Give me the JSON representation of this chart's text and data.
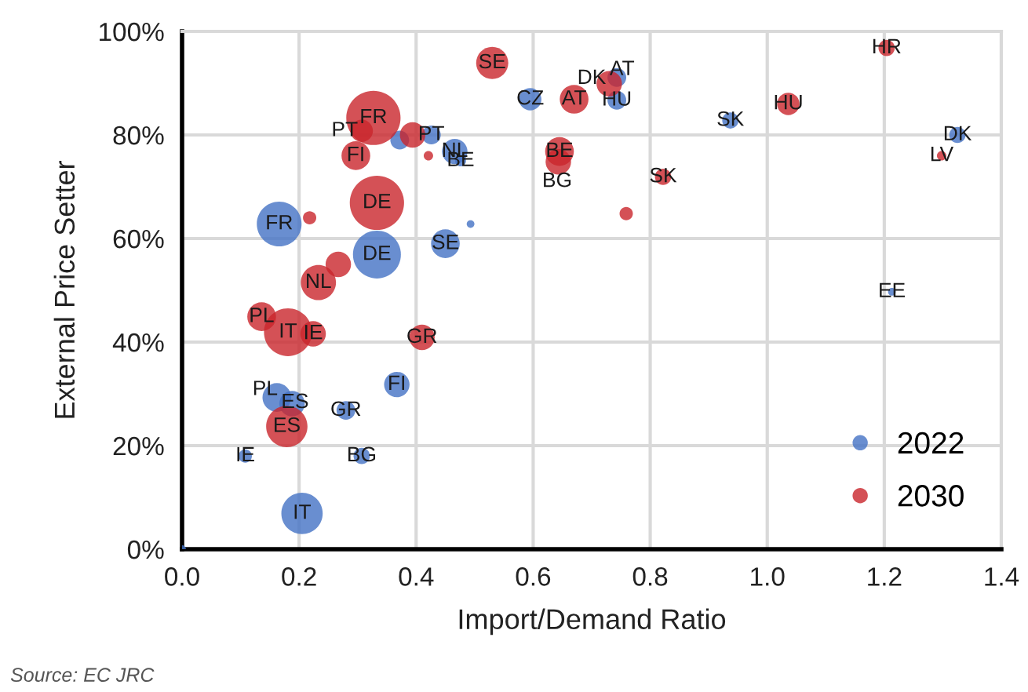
{
  "chart_data": {
    "type": "bubble",
    "xlabel": "Import/Demand Ratio",
    "ylabel": "External Price Setter",
    "xlim": [
      0,
      1.4
    ],
    "ylim": [
      0,
      100
    ],
    "xticks": [
      {
        "value": 0,
        "label": "0.0"
      },
      {
        "value": 0.2,
        "label": "0.2"
      },
      {
        "value": 0.4,
        "label": "0.4"
      },
      {
        "value": 0.6,
        "label": "0.6"
      },
      {
        "value": 0.8,
        "label": "0.8"
      },
      {
        "value": 1.0,
        "label": "1.0"
      },
      {
        "value": 1.2,
        "label": "1.2"
      },
      {
        "value": 1.4,
        "label": "1.4"
      }
    ],
    "yticks": [
      {
        "value": 0,
        "label": "0%"
      },
      {
        "value": 20,
        "label": "20%"
      },
      {
        "value": 40,
        "label": "40%"
      },
      {
        "value": 60,
        "label": "60%"
      },
      {
        "value": 80,
        "label": "80%"
      },
      {
        "value": 100,
        "label": "100%"
      }
    ],
    "grid": true,
    "legend": "bottom right",
    "series": [
      {
        "name": "2022",
        "color": "#4472c4",
        "x": [
          0.166,
          0.333,
          0.45,
          0.493,
          0.466,
          0.476,
          0.426,
          0.372,
          0.595,
          0.743,
          0.743,
          0.937,
          1.325,
          1.213,
          0.162,
          0.188,
          0.28,
          0.367,
          0.108,
          0.307,
          0.205,
          0.0
        ],
        "values": [
          62.8,
          56.9,
          59,
          62.8,
          76.8,
          75,
          80,
          79,
          86.9,
          91.1,
          86.7,
          82.8,
          80,
          49.7,
          29.3,
          28.1,
          26.8,
          31.8,
          18,
          18,
          6.9,
          0
        ],
        "sizes": [
          0.68,
          0.78,
          0.28,
          0.02,
          0.22,
          0.04,
          0.12,
          0.12,
          0.17,
          0.12,
          0.12,
          0.09,
          0.09,
          0.02,
          0.28,
          0.22,
          0.12,
          0.22,
          0.06,
          0.09,
          0.58,
          0.02
        ]
      },
      {
        "name": "2030",
        "color": "#c9262c",
        "x": [
          0.53,
          0.327,
          0.307,
          0.394,
          0.297,
          0.421,
          0.333,
          0.218,
          0.67,
          0.73,
          0.645,
          0.643,
          0.759,
          0.822,
          1.036,
          1.204,
          1.298,
          0.233,
          0.267,
          0.136,
          0.181,
          0.224,
          0.41,
          0.179
        ],
        "values": [
          93.9,
          83.3,
          80.8,
          80,
          76,
          76,
          66.9,
          64,
          86.9,
          89.9,
          76.8,
          74.8,
          64.8,
          71.9,
          86,
          96.8,
          76,
          51.5,
          55,
          44.9,
          41.9,
          41.6,
          40.9,
          23.7
        ],
        "sizes": [
          0.35,
          1,
          0.17,
          0.22,
          0.28,
          0.03,
          1,
          0.06,
          0.28,
          0.22,
          0.28,
          0.22,
          0.06,
          0.09,
          0.17,
          0.09,
          0.03,
          0.42,
          0.22,
          0.28,
          0.78,
          0.22,
          0.22,
          0.58
        ]
      }
    ],
    "annotations": [
      {
        "text": "FR",
        "x": 0.166,
        "y": 62.8
      },
      {
        "text": "DE",
        "x": 0.333,
        "y": 56.9
      },
      {
        "text": "SE",
        "x": 0.45,
        "y": 59
      },
      {
        "text": "NL",
        "x": 0.466,
        "y": 76.8
      },
      {
        "text": "BE",
        "x": 0.476,
        "y": 75
      },
      {
        "text": "PT",
        "x": 0.426,
        "y": 80
      },
      {
        "text": "CZ",
        "x": 0.595,
        "y": 86.9
      },
      {
        "text": "AT",
        "x": 0.752,
        "y": 92.6
      },
      {
        "text": "HU",
        "x": 0.743,
        "y": 86.7
      },
      {
        "text": "SK",
        "x": 0.937,
        "y": 82.8
      },
      {
        "text": "DK",
        "x": 1.325,
        "y": 80
      },
      {
        "text": "EE",
        "x": 1.213,
        "y": 49.7
      },
      {
        "text": "PL",
        "x": 0.142,
        "y": 30.8
      },
      {
        "text": "ES",
        "x": 0.193,
        "y": 28.3
      },
      {
        "text": "GR",
        "x": 0.28,
        "y": 26.8
      },
      {
        "text": "FI",
        "x": 0.367,
        "y": 31.8
      },
      {
        "text": "IE",
        "x": 0.108,
        "y": 18
      },
      {
        "text": "BG",
        "x": 0.307,
        "y": 18
      },
      {
        "text": "IT",
        "x": 0.205,
        "y": 6.9
      },
      {
        "text": "SE",
        "x": 0.53,
        "y": 93.9
      },
      {
        "text": "FR",
        "x": 0.327,
        "y": 83.3
      },
      {
        "text": "PT",
        "x": 0.278,
        "y": 80.8
      },
      {
        "text": "FI",
        "x": 0.297,
        "y": 76
      },
      {
        "text": "DE",
        "x": 0.333,
        "y": 66.9
      },
      {
        "text": "AT",
        "x": 0.67,
        "y": 86.9
      },
      {
        "text": "DK",
        "x": 0.7,
        "y": 90.9
      },
      {
        "text": "BE",
        "x": 0.645,
        "y": 76.8
      },
      {
        "text": "BG",
        "x": 0.641,
        "y": 71
      },
      {
        "text": "SK",
        "x": 0.822,
        "y": 71.9
      },
      {
        "text": "HU",
        "x": 1.036,
        "y": 86
      },
      {
        "text": "HR",
        "x": 1.204,
        "y": 96.8
      },
      {
        "text": "LV",
        "x": 1.298,
        "y": 76
      },
      {
        "text": "NL",
        "x": 0.233,
        "y": 51.5
      },
      {
        "text": "PL",
        "x": 0.136,
        "y": 44.9
      },
      {
        "text": "IT",
        "x": 0.181,
        "y": 41.9
      },
      {
        "text": "IE",
        "x": 0.224,
        "y": 41.6
      },
      {
        "text": "GR",
        "x": 0.41,
        "y": 40.9
      },
      {
        "text": "ES",
        "x": 0.179,
        "y": 23.7
      },
      "Source: EC JRC"
    ]
  }
}
